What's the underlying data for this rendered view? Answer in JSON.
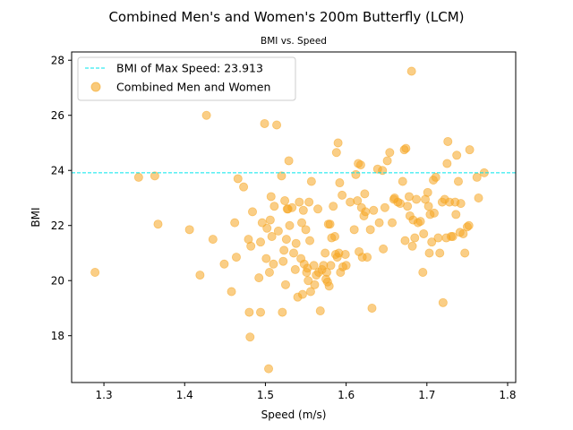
{
  "chart_data": {
    "type": "scatter",
    "title": "Combined Men's and Women's 200m Butterfly (LCM)",
    "subtitle": "BMI vs. Speed",
    "xlabel": "Speed (m/s)",
    "ylabel": "BMI",
    "xlim": [
      1.26,
      1.81
    ],
    "ylim": [
      16.3,
      28.3
    ],
    "xticks": [
      1.3,
      1.4,
      1.5,
      1.6,
      1.7,
      1.8
    ],
    "yticks": [
      18,
      20,
      22,
      24,
      26,
      28
    ],
    "x_tick_labels": [
      "1.3",
      "1.4",
      "1.5",
      "1.6",
      "1.7",
      "1.8"
    ],
    "y_tick_labels": [
      "18",
      "20",
      "22",
      "24",
      "26",
      "28"
    ],
    "grid": false,
    "legend_position": "top-left",
    "hline": {
      "label": "BMI of Max Speed: 23.913",
      "y": 23.913,
      "color": "#00e5ee",
      "style": "dashed"
    },
    "series": [
      {
        "name": "Combined Men and Women",
        "color": "#f5a623",
        "points": [
          [
            1.289,
            20.3
          ],
          [
            1.343,
            23.75
          ],
          [
            1.363,
            23.8
          ],
          [
            1.367,
            22.05
          ],
          [
            1.406,
            21.85
          ],
          [
            1.419,
            20.2
          ],
          [
            1.427,
            26.0
          ],
          [
            1.435,
            21.5
          ],
          [
            1.449,
            20.6
          ],
          [
            1.458,
            19.6
          ],
          [
            1.462,
            22.1
          ],
          [
            1.464,
            20.85
          ],
          [
            1.466,
            23.7
          ],
          [
            1.473,
            23.4
          ],
          [
            1.479,
            21.5
          ],
          [
            1.48,
            18.85
          ],
          [
            1.481,
            17.95
          ],
          [
            1.482,
            21.25
          ],
          [
            1.484,
            22.5
          ],
          [
            1.492,
            20.1
          ],
          [
            1.494,
            18.85
          ],
          [
            1.494,
            21.4
          ],
          [
            1.496,
            22.1
          ],
          [
            1.499,
            25.7
          ],
          [
            1.501,
            20.8
          ],
          [
            1.502,
            21.9
          ],
          [
            1.504,
            16.8
          ],
          [
            1.505,
            20.3
          ],
          [
            1.506,
            22.2
          ],
          [
            1.507,
            23.05
          ],
          [
            1.508,
            21.6
          ],
          [
            1.51,
            20.6
          ],
          [
            1.511,
            22.7
          ],
          [
            1.514,
            25.65
          ],
          [
            1.516,
            21.8
          ],
          [
            1.52,
            23.8
          ],
          [
            1.521,
            18.85
          ],
          [
            1.522,
            20.7
          ],
          [
            1.523,
            21.1
          ],
          [
            1.524,
            22.9
          ],
          [
            1.525,
            19.85
          ],
          [
            1.526,
            21.5
          ],
          [
            1.527,
            22.6
          ],
          [
            1.528,
            22.6
          ],
          [
            1.529,
            24.35
          ],
          [
            1.53,
            22.0
          ],
          [
            1.533,
            22.65
          ],
          [
            1.535,
            21.0
          ],
          [
            1.537,
            20.4
          ],
          [
            1.538,
            21.35
          ],
          [
            1.54,
            19.4
          ],
          [
            1.542,
            22.85
          ],
          [
            1.544,
            20.8
          ],
          [
            1.545,
            22.1
          ],
          [
            1.546,
            19.5
          ],
          [
            1.547,
            22.55
          ],
          [
            1.548,
            20.6
          ],
          [
            1.55,
            21.85
          ],
          [
            1.551,
            20.3
          ],
          [
            1.552,
            20.45
          ],
          [
            1.553,
            20.0
          ],
          [
            1.554,
            22.85
          ],
          [
            1.555,
            21.45
          ],
          [
            1.556,
            19.6
          ],
          [
            1.557,
            23.6
          ],
          [
            1.56,
            20.55
          ],
          [
            1.561,
            19.85
          ],
          [
            1.563,
            20.2
          ],
          [
            1.565,
            22.6
          ],
          [
            1.566,
            20.3
          ],
          [
            1.568,
            18.9
          ],
          [
            1.57,
            20.4
          ],
          [
            1.572,
            20.55
          ],
          [
            1.574,
            21.0
          ],
          [
            1.575,
            20.05
          ],
          [
            1.576,
            20.3
          ],
          [
            1.577,
            19.95
          ],
          [
            1.578,
            22.05
          ],
          [
            1.579,
            19.8
          ],
          [
            1.58,
            22.05
          ],
          [
            1.581,
            20.55
          ],
          [
            1.582,
            21.55
          ],
          [
            1.584,
            22.7
          ],
          [
            1.586,
            21.6
          ],
          [
            1.587,
            20.95
          ],
          [
            1.588,
            24.65
          ],
          [
            1.589,
            20.85
          ],
          [
            1.59,
            25.0
          ],
          [
            1.591,
            21.0
          ],
          [
            1.592,
            23.55
          ],
          [
            1.593,
            20.3
          ],
          [
            1.595,
            23.1
          ],
          [
            1.596,
            20.5
          ],
          [
            1.599,
            20.95
          ],
          [
            1.6,
            20.55
          ],
          [
            1.605,
            22.85
          ],
          [
            1.61,
            21.85
          ],
          [
            1.612,
            23.85
          ],
          [
            1.614,
            22.9
          ],
          [
            1.615,
            24.25
          ],
          [
            1.616,
            21.05
          ],
          [
            1.618,
            24.2
          ],
          [
            1.619,
            22.65
          ],
          [
            1.62,
            20.85
          ],
          [
            1.622,
            22.35
          ],
          [
            1.623,
            23.15
          ],
          [
            1.624,
            22.5
          ],
          [
            1.626,
            20.85
          ],
          [
            1.63,
            21.85
          ],
          [
            1.632,
            19.0
          ],
          [
            1.634,
            22.55
          ],
          [
            1.639,
            24.05
          ],
          [
            1.641,
            22.1
          ],
          [
            1.645,
            24.0
          ],
          [
            1.646,
            21.15
          ],
          [
            1.648,
            22.65
          ],
          [
            1.651,
            24.35
          ],
          [
            1.654,
            24.65
          ],
          [
            1.657,
            22.1
          ],
          [
            1.659,
            22.95
          ],
          [
            1.66,
            23.0
          ],
          [
            1.664,
            22.85
          ],
          [
            1.667,
            22.8
          ],
          [
            1.67,
            23.6
          ],
          [
            1.672,
            24.75
          ],
          [
            1.673,
            21.45
          ],
          [
            1.674,
            24.8
          ],
          [
            1.676,
            22.7
          ],
          [
            1.678,
            23.05
          ],
          [
            1.679,
            22.35
          ],
          [
            1.681,
            27.6
          ],
          [
            1.682,
            21.25
          ],
          [
            1.683,
            22.2
          ],
          [
            1.685,
            21.55
          ],
          [
            1.687,
            22.95
          ],
          [
            1.689,
            22.1
          ],
          [
            1.692,
            22.15
          ],
          [
            1.695,
            20.3
          ],
          [
            1.696,
            21.7
          ],
          [
            1.698,
            22.95
          ],
          [
            1.701,
            23.2
          ],
          [
            1.702,
            22.7
          ],
          [
            1.703,
            21.0
          ],
          [
            1.704,
            22.4
          ],
          [
            1.706,
            21.4
          ],
          [
            1.708,
            23.65
          ],
          [
            1.709,
            22.45
          ],
          [
            1.711,
            23.75
          ],
          [
            1.714,
            21.55
          ],
          [
            1.716,
            21.0
          ],
          [
            1.719,
            22.85
          ],
          [
            1.72,
            19.2
          ],
          [
            1.722,
            22.95
          ],
          [
            1.724,
            21.55
          ],
          [
            1.725,
            24.25
          ],
          [
            1.726,
            25.05
          ],
          [
            1.728,
            22.85
          ],
          [
            1.73,
            21.6
          ],
          [
            1.732,
            21.6
          ],
          [
            1.735,
            22.85
          ],
          [
            1.736,
            22.4
          ],
          [
            1.737,
            24.55
          ],
          [
            1.739,
            23.6
          ],
          [
            1.741,
            21.75
          ],
          [
            1.742,
            22.8
          ],
          [
            1.745,
            21.7
          ],
          [
            1.747,
            21.0
          ],
          [
            1.75,
            21.95
          ],
          [
            1.752,
            22.0
          ],
          [
            1.753,
            24.75
          ],
          [
            1.762,
            23.75
          ],
          [
            1.764,
            23.0
          ],
          [
            1.771,
            23.913
          ]
        ]
      }
    ]
  }
}
